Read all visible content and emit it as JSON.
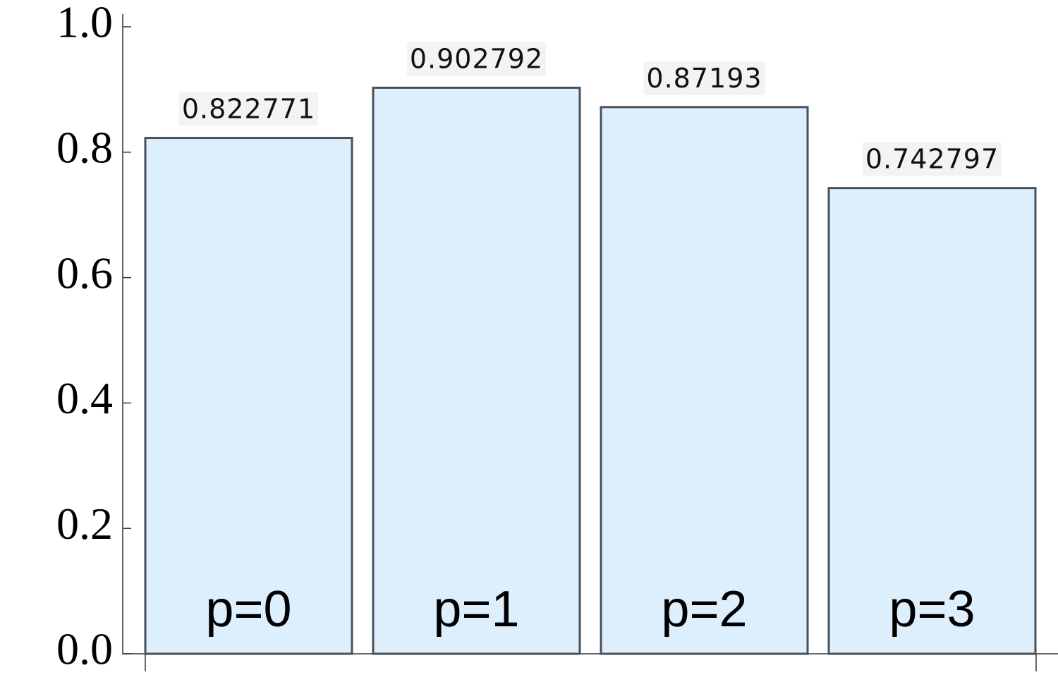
{
  "chart_data": {
    "type": "bar",
    "categories": [
      "p=0",
      "p=1",
      "p=2",
      "p=3"
    ],
    "values": [
      0.822771,
      0.902792,
      0.87193,
      0.742797
    ],
    "color": "#ddeefd",
    "ylim": [
      0,
      1.0
    ],
    "yticks": [
      {
        "value": 0,
        "label": "0.0"
      },
      0.2,
      0.4,
      0.6,
      0.8,
      {
        "value": 1.0,
        "label": "1.0"
      }
    ]
  }
}
